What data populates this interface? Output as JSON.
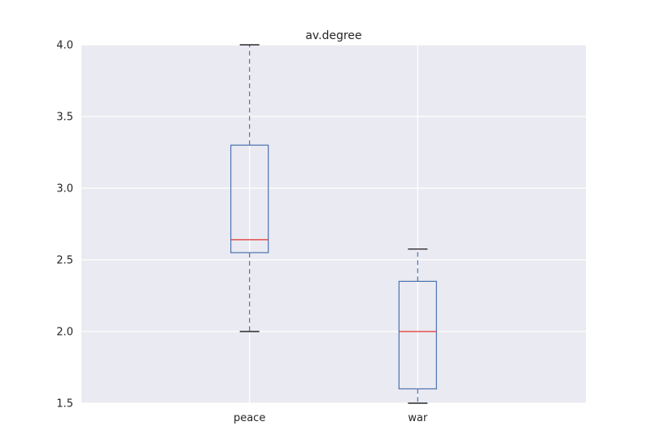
{
  "chart_data": {
    "type": "box",
    "title": "av.degree",
    "xlabel": "",
    "ylabel": "",
    "ylim": [
      1.5,
      4.0
    ],
    "yticks": [
      "1.5",
      "2.0",
      "2.5",
      "3.0",
      "3.5",
      "4.0"
    ],
    "grid": true,
    "categories": [
      "peace",
      "war"
    ],
    "boxes": [
      {
        "category": "peace",
        "whisker_low": 2.0,
        "q1": 2.55,
        "median": 2.64,
        "q3": 3.3,
        "whisker_high": 4.0
      },
      {
        "category": "war",
        "whisker_low": 1.5,
        "q1": 1.6,
        "median": 2.0,
        "q3": 2.35,
        "whisker_high": 2.575
      }
    ],
    "colors": {
      "plot_background": "#eaeaf2",
      "grid": "#ffffff",
      "box": "#4c72b0",
      "median": "#e2322f",
      "cap": "#000000"
    }
  }
}
